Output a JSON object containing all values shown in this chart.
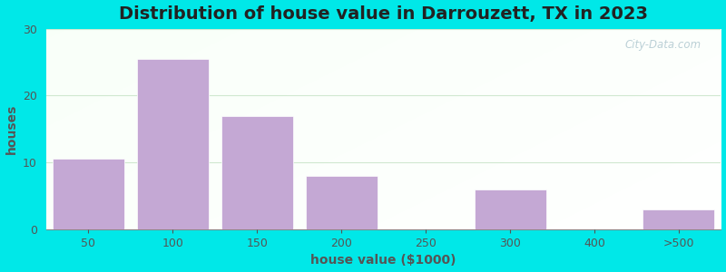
{
  "title": "Distribution of house value in Darrouzett, TX in 2023",
  "xlabel": "house value ($1000)",
  "ylabel": "houses",
  "bar_labels": [
    "50",
    "100",
    "150",
    "200",
    "250",
    "300",
    "400",
    ">500"
  ],
  "bar_values": [
    10.5,
    25.5,
    17,
    8,
    0,
    6,
    0,
    3
  ],
  "bar_color": "#c4a8d4",
  "bar_edgecolor": "#ffffff",
  "ylim": [
    0,
    30
  ],
  "yticks": [
    0,
    10,
    20,
    30
  ],
  "outer_bg": "#00e8e8",
  "title_fontsize": 14,
  "axis_label_fontsize": 10,
  "tick_fontsize": 9,
  "watermark": "City-Data.com",
  "watermark_color": "#b0c8d0",
  "grid_color": "#d0e8d0",
  "spine_color": "#888888",
  "text_color": "#555555"
}
